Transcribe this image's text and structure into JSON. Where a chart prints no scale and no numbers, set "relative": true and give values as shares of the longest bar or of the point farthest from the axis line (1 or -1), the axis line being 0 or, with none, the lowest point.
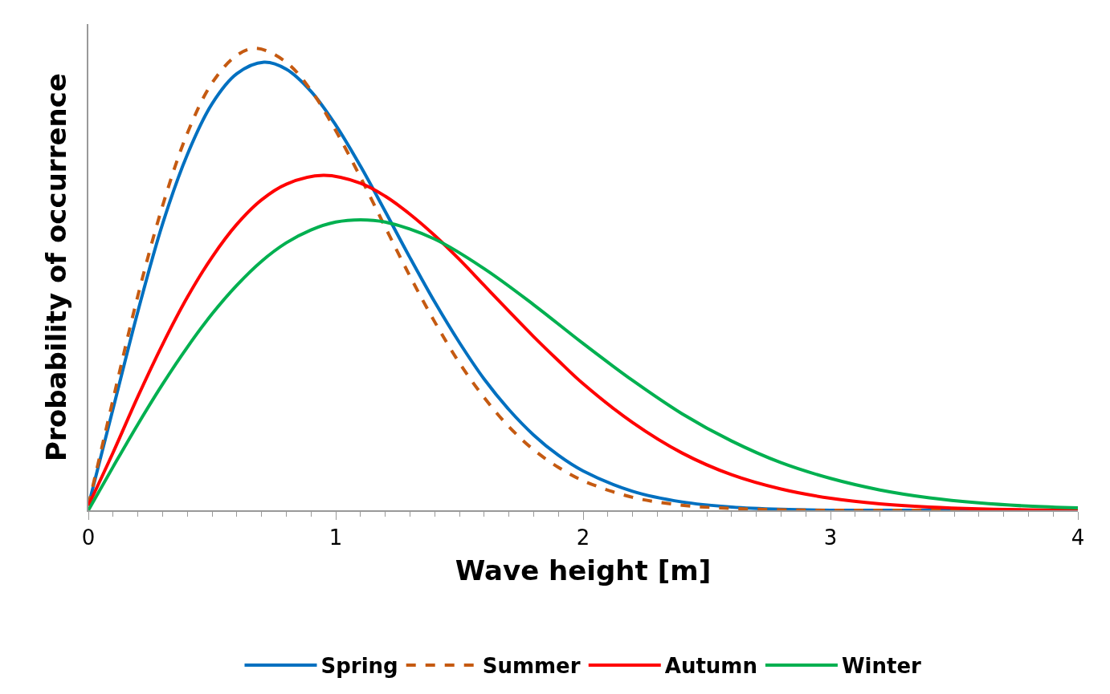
{
  "chart_data": {
    "type": "line",
    "relative": true,
    "xlabel": "Wave height [m]",
    "ylabel": "Probability of occurrence",
    "xlim": [
      0,
      4
    ],
    "xticks": [
      0,
      1,
      2,
      3,
      4
    ],
    "legend": "bottom",
    "marker": "none",
    "series": [
      {
        "name": "Spring",
        "color": "#0070c0",
        "line_style": "solid",
        "x": [
          0,
          0.1,
          0.2,
          0.3,
          0.4,
          0.5,
          0.6,
          0.71,
          0.8,
          0.9,
          1.0,
          1.1,
          1.2,
          1.3,
          1.4,
          1.5,
          1.6,
          1.7,
          1.8,
          1.9,
          2.0,
          2.2,
          2.4,
          2.6,
          2.8,
          3.0,
          3.5,
          4.0
        ],
        "values": [
          0.01,
          0.22,
          0.43,
          0.62,
          0.77,
          0.88,
          0.945,
          0.97,
          0.955,
          0.907,
          0.834,
          0.745,
          0.647,
          0.547,
          0.451,
          0.363,
          0.284,
          0.218,
          0.163,
          0.119,
          0.085,
          0.041,
          0.018,
          0.007,
          0.002,
          0,
          0,
          0
        ]
      },
      {
        "name": "Summer",
        "color": "#c55a11",
        "line_style": "dashed",
        "x": [
          0,
          0.1,
          0.2,
          0.3,
          0.4,
          0.5,
          0.6,
          0.68,
          0.8,
          0.9,
          1.0,
          1.1,
          1.2,
          1.3,
          1.4,
          1.5,
          1.6,
          1.7,
          1.8,
          1.9,
          2.0,
          2.2,
          2.4,
          2.6,
          2.8,
          3.0,
          3.5,
          4.0
        ],
        "values": [
          0.01,
          0.24,
          0.464,
          0.659,
          0.816,
          0.925,
          0.985,
          1.0,
          0.97,
          0.909,
          0.822,
          0.721,
          0.613,
          0.507,
          0.408,
          0.319,
          0.244,
          0.181,
          0.131,
          0.093,
          0.064,
          0.028,
          0.011,
          0.004,
          0.001,
          0,
          0,
          0
        ]
      },
      {
        "name": "Autumn",
        "color": "#ff0000",
        "line_style": "solid",
        "x": [
          0,
          0.1,
          0.2,
          0.3,
          0.4,
          0.5,
          0.6,
          0.7,
          0.8,
          0.95,
          1.1,
          1.2,
          1.3,
          1.4,
          1.5,
          1.6,
          1.7,
          1.8,
          1.9,
          2.0,
          2.2,
          2.4,
          2.6,
          2.8,
          3.0,
          3.2,
          3.4,
          3.6,
          3.8,
          4.0
        ],
        "values": [
          0.01,
          0.125,
          0.246,
          0.359,
          0.461,
          0.548,
          0.619,
          0.672,
          0.706,
          0.725,
          0.708,
          0.68,
          0.641,
          0.595,
          0.543,
          0.487,
          0.431,
          0.376,
          0.324,
          0.274,
          0.19,
          0.124,
          0.077,
          0.046,
          0.026,
          0.014,
          0.007,
          0.003,
          0.001,
          0
        ]
      },
      {
        "name": "Winter",
        "color": "#00b050",
        "line_style": "solid",
        "x": [
          0,
          0.1,
          0.2,
          0.3,
          0.4,
          0.5,
          0.6,
          0.7,
          0.8,
          0.9,
          1.0,
          1.1,
          1.2,
          1.4,
          1.6,
          1.8,
          2.0,
          2.2,
          2.4,
          2.6,
          2.8,
          3.0,
          3.2,
          3.4,
          3.6,
          3.8,
          4.0
        ],
        "values": [
          0.0,
          0.094,
          0.186,
          0.273,
          0.353,
          0.425,
          0.487,
          0.539,
          0.579,
          0.607,
          0.624,
          0.629,
          0.624,
          0.587,
          0.523,
          0.445,
          0.361,
          0.281,
          0.209,
          0.15,
          0.103,
          0.069,
          0.044,
          0.027,
          0.016,
          0.009,
          0.005
        ]
      }
    ]
  }
}
